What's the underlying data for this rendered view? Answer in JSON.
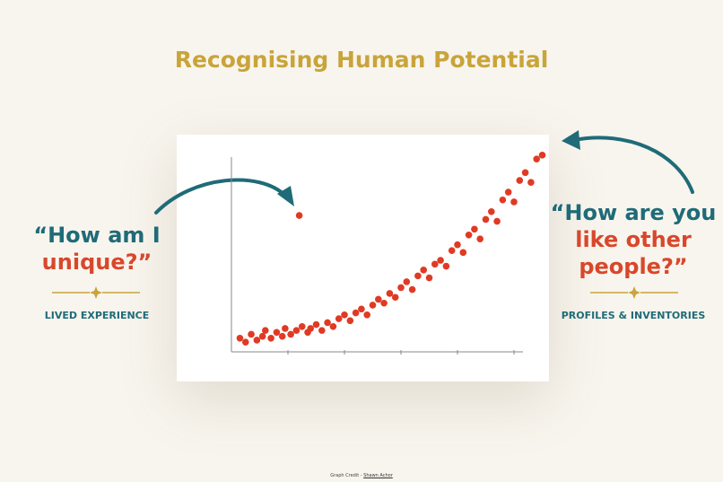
{
  "title": "Recognising Human Potential",
  "left": {
    "quote_lines": [
      "“How am I",
      "unique?”"
    ],
    "caption": "LIVED EXPERIENCE"
  },
  "right": {
    "quote_lines": [
      "“How are you",
      "like other",
      "people?”"
    ],
    "caption": "PROFILES & INVENTORIES"
  },
  "credit": {
    "label": "Graph Credit -",
    "link": "Shawn Achor"
  },
  "chart_data": {
    "type": "scatter",
    "color": "#e03a24",
    "x": [
      3,
      5,
      7,
      9,
      11,
      12,
      14,
      16,
      18,
      19,
      21,
      23,
      25,
      27,
      28,
      30,
      32,
      34,
      36,
      38,
      40,
      42,
      44,
      46,
      48,
      50,
      52,
      54,
      56,
      58,
      60,
      62,
      64,
      66,
      68,
      70,
      72,
      74,
      76,
      78,
      80,
      82,
      84,
      86,
      88,
      90,
      92,
      94,
      96,
      98,
      100,
      102,
      104,
      106,
      108,
      110,
      24
    ],
    "y": [
      7,
      5,
      9,
      6,
      8,
      11,
      7,
      10,
      8,
      12,
      9,
      11,
      13,
      10,
      12,
      14,
      11,
      15,
      13,
      17,
      19,
      16,
      20,
      22,
      19,
      24,
      27,
      25,
      30,
      28,
      33,
      36,
      32,
      39,
      42,
      38,
      45,
      47,
      44,
      52,
      55,
      51,
      60,
      63,
      58,
      68,
      72,
      67,
      78,
      82,
      77,
      88,
      92,
      87,
      99,
      101,
      70
    ],
    "xlim": [
      0,
      100
    ],
    "ylim": [
      0,
      100
    ],
    "xticks": [
      20,
      40,
      60,
      80,
      100
    ]
  }
}
